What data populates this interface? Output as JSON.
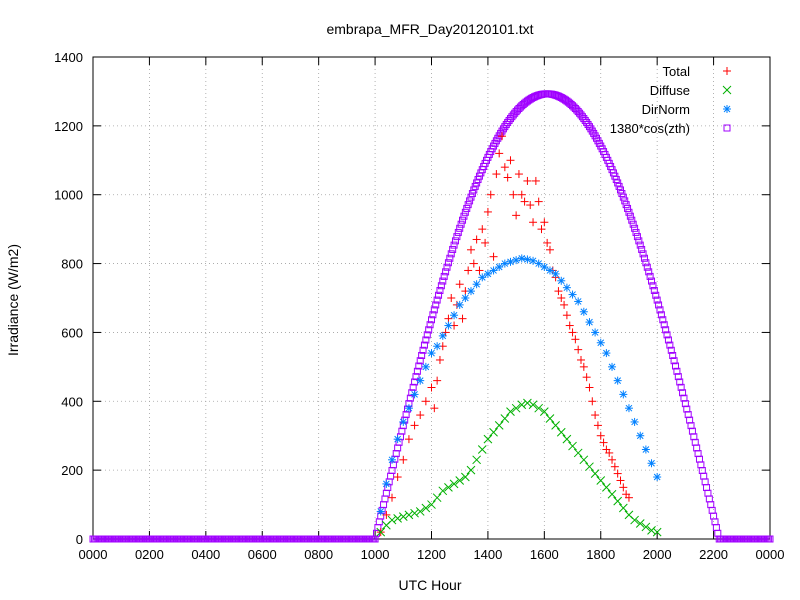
{
  "chart_data": {
    "type": "scatter",
    "title": "embrapa_MFR_Day20120101.txt",
    "xlabel": "UTC Hour",
    "ylabel": "Irradiance (W/m2)",
    "xlim": [
      0,
      24
    ],
    "ylim": [
      0,
      1400
    ],
    "grid": true,
    "legend_position": "top-right",
    "x_tick_labels": [
      "0000",
      "0200",
      "0400",
      "0600",
      "0800",
      "1000",
      "1200",
      "1400",
      "1600",
      "1800",
      "2000",
      "2200",
      "0000"
    ],
    "y_ticks": [
      0,
      200,
      400,
      600,
      800,
      1000,
      1200,
      1400
    ],
    "series": [
      {
        "name": "Total",
        "marker": "plus",
        "color": "#ff0000",
        "points": [
          [
            10.2,
            20
          ],
          [
            10.4,
            70
          ],
          [
            10.6,
            120
          ],
          [
            10.8,
            180
          ],
          [
            11.0,
            230
          ],
          [
            11.2,
            290
          ],
          [
            11.4,
            330
          ],
          [
            11.6,
            360
          ],
          [
            11.8,
            400
          ],
          [
            12.0,
            440
          ],
          [
            12.1,
            380
          ],
          [
            12.2,
            460
          ],
          [
            12.3,
            520
          ],
          [
            12.4,
            560
          ],
          [
            12.5,
            600
          ],
          [
            12.6,
            640
          ],
          [
            12.7,
            700
          ],
          [
            12.8,
            620
          ],
          [
            12.9,
            680
          ],
          [
            13.0,
            740
          ],
          [
            13.1,
            640
          ],
          [
            13.2,
            720
          ],
          [
            13.3,
            780
          ],
          [
            13.4,
            840
          ],
          [
            13.5,
            800
          ],
          [
            13.6,
            870
          ],
          [
            13.7,
            780
          ],
          [
            13.8,
            900
          ],
          [
            13.9,
            860
          ],
          [
            14.0,
            950
          ],
          [
            14.1,
            1000
          ],
          [
            14.2,
            820
          ],
          [
            14.3,
            1060
          ],
          [
            14.4,
            1120
          ],
          [
            14.5,
            1170
          ],
          [
            14.6,
            1080
          ],
          [
            14.7,
            1050
          ],
          [
            14.8,
            1100
          ],
          [
            14.9,
            1000
          ],
          [
            15.0,
            940
          ],
          [
            15.1,
            1060
          ],
          [
            15.2,
            1000
          ],
          [
            15.3,
            980
          ],
          [
            15.4,
            1040
          ],
          [
            15.5,
            970
          ],
          [
            15.6,
            920
          ],
          [
            15.7,
            1040
          ],
          [
            15.8,
            980
          ],
          [
            15.9,
            900
          ],
          [
            16.0,
            920
          ],
          [
            16.1,
            860
          ],
          [
            16.2,
            840
          ],
          [
            16.3,
            780
          ],
          [
            16.4,
            760
          ],
          [
            16.5,
            720
          ],
          [
            16.6,
            700
          ],
          [
            16.7,
            680
          ],
          [
            16.8,
            650
          ],
          [
            16.9,
            620
          ],
          [
            17.0,
            600
          ],
          [
            17.1,
            580
          ],
          [
            17.2,
            550
          ],
          [
            17.3,
            520
          ],
          [
            17.4,
            500
          ],
          [
            17.5,
            470
          ],
          [
            17.6,
            440
          ],
          [
            17.7,
            400
          ],
          [
            17.8,
            360
          ],
          [
            17.9,
            330
          ],
          [
            18.0,
            300
          ],
          [
            18.1,
            280
          ],
          [
            18.2,
            260
          ],
          [
            18.3,
            250
          ],
          [
            18.4,
            230
          ],
          [
            18.5,
            210
          ],
          [
            18.6,
            190
          ],
          [
            18.7,
            170
          ],
          [
            18.8,
            150
          ],
          [
            18.9,
            130
          ],
          [
            19.0,
            120
          ]
        ]
      },
      {
        "name": "Diffuse",
        "marker": "cross",
        "color": "#00b000",
        "points": [
          [
            10.2,
            20
          ],
          [
            10.4,
            40
          ],
          [
            10.6,
            55
          ],
          [
            10.8,
            60
          ],
          [
            11.0,
            65
          ],
          [
            11.2,
            70
          ],
          [
            11.4,
            75
          ],
          [
            11.6,
            80
          ],
          [
            11.8,
            90
          ],
          [
            12.0,
            100
          ],
          [
            12.2,
            120
          ],
          [
            12.4,
            140
          ],
          [
            12.6,
            150
          ],
          [
            12.8,
            160
          ],
          [
            13.0,
            170
          ],
          [
            13.2,
            180
          ],
          [
            13.4,
            200
          ],
          [
            13.6,
            230
          ],
          [
            13.8,
            260
          ],
          [
            14.0,
            290
          ],
          [
            14.2,
            310
          ],
          [
            14.4,
            330
          ],
          [
            14.6,
            350
          ],
          [
            14.8,
            370
          ],
          [
            15.0,
            380
          ],
          [
            15.2,
            390
          ],
          [
            15.4,
            395
          ],
          [
            15.6,
            390
          ],
          [
            15.8,
            380
          ],
          [
            16.0,
            370
          ],
          [
            16.2,
            350
          ],
          [
            16.4,
            330
          ],
          [
            16.6,
            310
          ],
          [
            16.8,
            290
          ],
          [
            17.0,
            270
          ],
          [
            17.2,
            250
          ],
          [
            17.4,
            230
          ],
          [
            17.6,
            210
          ],
          [
            17.8,
            190
          ],
          [
            18.0,
            170
          ],
          [
            18.2,
            150
          ],
          [
            18.4,
            130
          ],
          [
            18.6,
            110
          ],
          [
            18.8,
            90
          ],
          [
            19.0,
            70
          ],
          [
            19.2,
            55
          ],
          [
            19.4,
            45
          ],
          [
            19.6,
            35
          ],
          [
            19.8,
            25
          ],
          [
            20.0,
            20
          ]
        ]
      },
      {
        "name": "DirNorm",
        "marker": "star",
        "color": "#0080ff",
        "points": [
          [
            10.2,
            80
          ],
          [
            10.4,
            160
          ],
          [
            10.6,
            230
          ],
          [
            10.8,
            290
          ],
          [
            11.0,
            340
          ],
          [
            11.2,
            380
          ],
          [
            11.4,
            420
          ],
          [
            11.6,
            460
          ],
          [
            11.8,
            500
          ],
          [
            12.0,
            540
          ],
          [
            12.2,
            560
          ],
          [
            12.4,
            590
          ],
          [
            12.6,
            620
          ],
          [
            12.8,
            650
          ],
          [
            13.0,
            680
          ],
          [
            13.2,
            700
          ],
          [
            13.4,
            720
          ],
          [
            13.6,
            740
          ],
          [
            13.8,
            760
          ],
          [
            14.0,
            770
          ],
          [
            14.2,
            780
          ],
          [
            14.4,
            790
          ],
          [
            14.6,
            800
          ],
          [
            14.8,
            805
          ],
          [
            15.0,
            810
          ],
          [
            15.2,
            815
          ],
          [
            15.4,
            812
          ],
          [
            15.6,
            808
          ],
          [
            15.8,
            800
          ],
          [
            16.0,
            790
          ],
          [
            16.2,
            780
          ],
          [
            16.4,
            770
          ],
          [
            16.6,
            750
          ],
          [
            16.8,
            730
          ],
          [
            17.0,
            710
          ],
          [
            17.2,
            690
          ],
          [
            17.4,
            660
          ],
          [
            17.6,
            630
          ],
          [
            17.8,
            600
          ],
          [
            18.0,
            570
          ],
          [
            18.2,
            540
          ],
          [
            18.4,
            500
          ],
          [
            18.6,
            460
          ],
          [
            18.8,
            420
          ],
          [
            19.0,
            380
          ],
          [
            19.2,
            340
          ],
          [
            19.4,
            300
          ],
          [
            19.6,
            260
          ],
          [
            19.8,
            220
          ],
          [
            20.0,
            180
          ]
        ]
      },
      {
        "name": "1380*cos(zth)",
        "marker": "square",
        "color": "#a000ff",
        "function": "1380*cos(zth)",
        "sunrise": 10.0,
        "sunset": 22.2,
        "peak": 1293,
        "peak_hour": 16.1
      }
    ]
  }
}
